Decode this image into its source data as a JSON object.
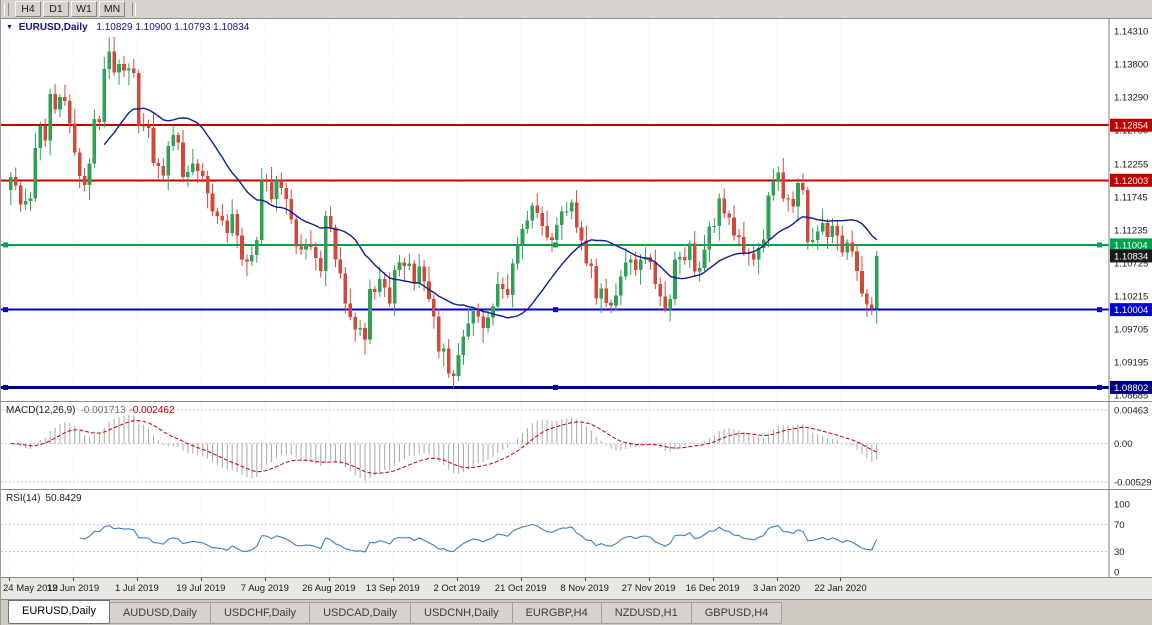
{
  "toolbar": {
    "timeframes": [
      "H4",
      "D1",
      "W1",
      "MN"
    ]
  },
  "chart_header": {
    "symbol": "EURUSD,Daily",
    "ohlc": "1.10829 1.10900 1.10793 1.10834"
  },
  "indicators": {
    "macd": {
      "label": "MACD(12,26,9)",
      "main_value": "-0.001713",
      "signal_value": "-0.002462"
    },
    "rsi": {
      "label": "RSI(14)",
      "value": "50.8429"
    }
  },
  "price_axis": {
    "tags": [
      {
        "text": "1.12854",
        "value": 1.12854,
        "color": "#c00000"
      },
      {
        "text": "1.12003",
        "value": 1.12003,
        "color": "#c00000"
      },
      {
        "text": "1.11004",
        "value": 1.11004,
        "color": "#00a14b"
      },
      {
        "text": "1.10834",
        "value": 1.10834,
        "color": "#1a1a1a"
      },
      {
        "text": "1.10004",
        "value": 1.10004,
        "color": "#0000d0"
      },
      {
        "text": "1.08802",
        "value": 1.08802,
        "color": "#000080"
      }
    ]
  },
  "tabs": [
    {
      "label": "EURUSD,Daily",
      "active": true
    },
    {
      "label": "AUDUSD,Daily",
      "active": false
    },
    {
      "label": "USDCHF,Daily",
      "active": false
    },
    {
      "label": "USDCAD,Daily",
      "active": false
    },
    {
      "label": "USDCNH,Daily",
      "active": false
    },
    {
      "label": "EURGBP,H4",
      "active": false
    },
    {
      "label": "NZDUSD,H1",
      "active": false
    },
    {
      "label": "GBPUSD,H4",
      "active": false
    }
  ],
  "chart_data": {
    "type": "candlestick",
    "symbol": "EURUSD",
    "timeframe": "Daily",
    "title": "EURUSD,Daily",
    "ohlc_display": {
      "open": 1.10829,
      "high": 1.109,
      "low": 1.10793,
      "close": 1.10834
    },
    "ylim": [
      1.08685,
      1.1431
    ],
    "y_gridlines": [
      {
        "value": 1.1431,
        "text": "1.14310"
      },
      {
        "value": 1.138,
        "text": "1.13800"
      },
      {
        "value": 1.1329,
        "text": "1.13290"
      },
      {
        "value": 1.1278,
        "text": "1.12780"
      },
      {
        "value": 1.12255,
        "text": "1.12255"
      },
      {
        "value": 1.11745,
        "text": "1.11745"
      },
      {
        "value": 1.11235,
        "text": "1.11235"
      },
      {
        "value": 1.10725,
        "text": "1.10725"
      },
      {
        "value": 1.10215,
        "text": "1.10215"
      },
      {
        "value": 1.09705,
        "text": "1.09705"
      },
      {
        "value": 1.09195,
        "text": "1.09195"
      },
      {
        "value": 1.08685,
        "text": "1.08685"
      }
    ],
    "x_labels": [
      "24 May 2019",
      "12 Jun 2019",
      "1 Jul 2019",
      "19 Jul 2019",
      "7 Aug 2019",
      "26 Aug 2019",
      "13 Sep 2019",
      "2 Oct 2019",
      "21 Oct 2019",
      "8 Nov 2019",
      "27 Nov 2019",
      "16 Dec 2019",
      "3 Jan 2020",
      "22 Jan 2020"
    ],
    "label_every": 13,
    "first_open": 1.1185,
    "closes": [
      1.1205,
      1.1192,
      1.1163,
      1.1168,
      1.1172,
      1.125,
      1.1284,
      1.1262,
      1.1334,
      1.131,
      1.1329,
      1.1323,
      1.1288,
      1.1243,
      1.1207,
      1.1193,
      1.1226,
      1.1295,
      1.129,
      1.1372,
      1.1399,
      1.1367,
      1.138,
      1.137,
      1.1373,
      1.1366,
      1.1285,
      1.1284,
      1.1281,
      1.1227,
      1.1222,
      1.1208,
      1.1253,
      1.127,
      1.1259,
      1.1205,
      1.1213,
      1.1226,
      1.1215,
      1.1207,
      1.118,
      1.1152,
      1.1145,
      1.1138,
      1.1119,
      1.1148,
      1.1115,
      1.1078,
      1.1075,
      1.1085,
      1.1108,
      1.12,
      1.1198,
      1.1171,
      1.12,
      1.1188,
      1.1171,
      1.114,
      1.1098,
      1.1093,
      1.11,
      1.1097,
      1.108,
      1.106,
      1.1145,
      1.1127,
      1.1078,
      1.1056,
      1.101,
      1.0989,
      1.097,
      1.0972,
      1.0954,
      1.1032,
      1.1028,
      1.1048,
      1.1035,
      1.101,
      1.1062,
      1.1073,
      1.1068,
      1.1072,
      1.1042,
      1.1067,
      1.1044,
      1.1017,
      1.099,
      1.0936,
      1.094,
      1.0902,
      1.0898,
      1.093,
      1.0959,
      1.0979,
      1.0998,
      1.099,
      1.0972,
      1.0988,
      1.1005,
      1.104,
      1.1032,
      1.1023,
      1.1072,
      1.1101,
      1.1125,
      1.1138,
      1.1161,
      1.115,
      1.113,
      1.1112,
      1.1108,
      1.1131,
      1.1152,
      1.1152,
      1.1166,
      1.1127,
      1.1107,
      1.1072,
      1.1068,
      1.1018,
      1.1033,
      1.1011,
      1.1007,
      1.1022,
      1.1052,
      1.1073,
      1.1078,
      1.1062,
      1.1078,
      1.1082,
      1.1074,
      1.104,
      1.1021,
      1.1001,
      1.1017,
      1.1078,
      1.1082,
      1.1077,
      1.1103,
      1.1059,
      1.1065,
      1.1093,
      1.1129,
      1.113,
      1.1172,
      1.1149,
      1.1143,
      1.1115,
      1.1113,
      1.1088,
      1.1087,
      1.1078,
      1.1096,
      1.1109,
      1.1177,
      1.1199,
      1.1212,
      1.1172,
      1.1171,
      1.116,
      1.1196,
      1.1185,
      1.1105,
      1.1108,
      1.1121,
      1.1134,
      1.1113,
      1.113,
      1.1115,
      1.1089,
      1.1104,
      1.109,
      1.106,
      1.1025,
      1.1008,
      1.1002,
      1.1083
    ],
    "wick_pattern": [
      8,
      15,
      5,
      19,
      10,
      23,
      7,
      12
    ],
    "wick_overrides": {
      "20": {
        "high": 1.1421
      },
      "90": {
        "low": 1.0879
      }
    },
    "colors": {
      "up": "#2fa156",
      "down": "#d1493b"
    },
    "ma": {
      "type": "SMA",
      "period": 20,
      "color": "#101c96"
    },
    "hlines": [
      {
        "value": 1.12854,
        "color": "#c00000",
        "width": 2,
        "selected": false
      },
      {
        "value": 1.12003,
        "color": "#c00000",
        "width": 2,
        "selected": false
      },
      {
        "value": 1.11004,
        "color": "#00a14b",
        "width": 2,
        "selected": true
      },
      {
        "value": 1.10004,
        "color": "#0000d0",
        "width": 2,
        "selected": true
      },
      {
        "value": 1.08802,
        "color": "#000080",
        "width": 3,
        "selected": true
      }
    ],
    "macd": {
      "fast": 12,
      "slow": 26,
      "signal": 9,
      "current_main": -0.001713,
      "current_signal": -0.002462,
      "ylim": [
        -0.00529,
        0.00463
      ],
      "grid": [
        {
          "value": 0.00463,
          "text": "0.00463"
        },
        {
          "value": 0,
          "text": "0.00"
        },
        {
          "value": -0.00529,
          "text": "-0.00529"
        }
      ],
      "histogram_color": "#a8a8a8",
      "signal_color": "#c00000"
    },
    "rsi": {
      "period": 14,
      "current": 50.8429,
      "ylim": [
        0,
        100
      ],
      "levels_dashed": [
        70,
        30
      ],
      "axis": [
        {
          "value": 100,
          "text": "100"
        },
        {
          "value": 70,
          "text": "70"
        },
        {
          "value": 30,
          "text": "30"
        },
        {
          "value": 0,
          "text": "0"
        }
      ],
      "color": "#3e7fc1"
    }
  }
}
